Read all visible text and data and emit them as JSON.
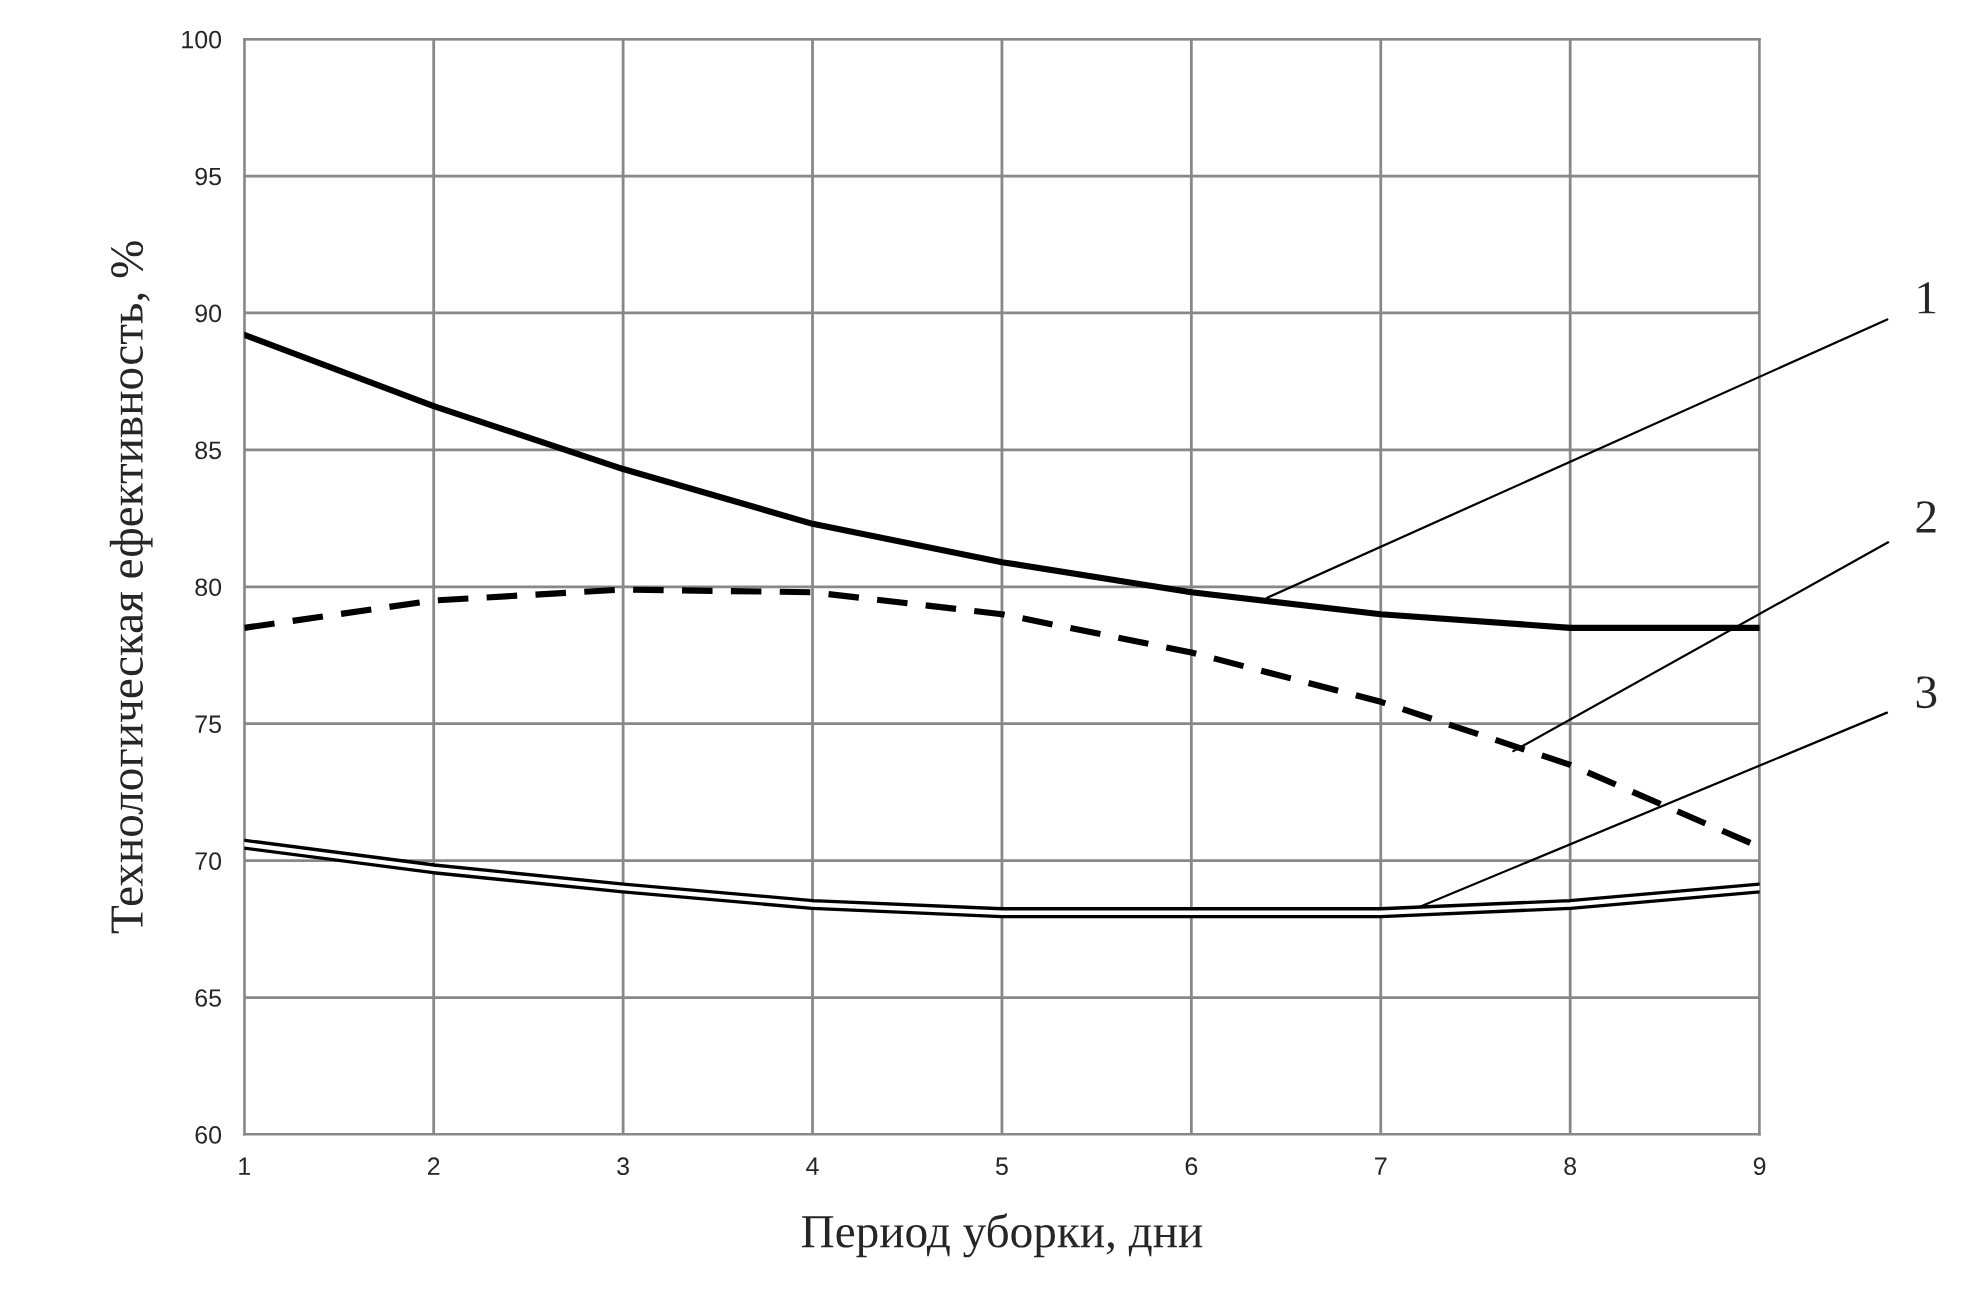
{
  "chart_data": {
    "type": "line",
    "xlabel": "Период уборки, дни",
    "ylabel": "Технологическая ефективность, %",
    "x": [
      1,
      2,
      3,
      4,
      5,
      6,
      7,
      8,
      9
    ],
    "series": [
      {
        "color": "#000000",
        "line_style": "solid",
        "values": [
          89.2,
          86.6,
          84.3,
          82.3,
          80.9,
          79.8,
          79.0,
          78.5,
          78.5
        ]
      },
      {
        "color": "#000000",
        "line_style": "dashed",
        "values": [
          78.5,
          79.5,
          79.9,
          79.8,
          79.0,
          77.6,
          75.8,
          73.5,
          70.5
        ]
      },
      {
        "color": "#000000",
        "line_style": "solid",
        "values": [
          70.6,
          69.7,
          69.0,
          68.4,
          68.1,
          68.1,
          68.1,
          68.4,
          69.0
        ]
      }
    ],
    "annotations": [
      {
        "text": "1",
        "x": 6.4,
        "y": 79.6
      },
      {
        "text": "2",
        "x": 7.7,
        "y": 74.0
      },
      {
        "text": "3",
        "x": 7.2,
        "y": 68.3
      }
    ],
    "xlim": [
      1,
      9
    ],
    "ylim": [
      60,
      100
    ],
    "xticks": [
      1,
      2,
      3,
      4,
      5,
      6,
      7,
      8,
      9
    ],
    "yticks": [
      60,
      65,
      70,
      75,
      80,
      85,
      90,
      95,
      100
    ],
    "grid": true,
    "legend": false,
    "marker": "none"
  }
}
